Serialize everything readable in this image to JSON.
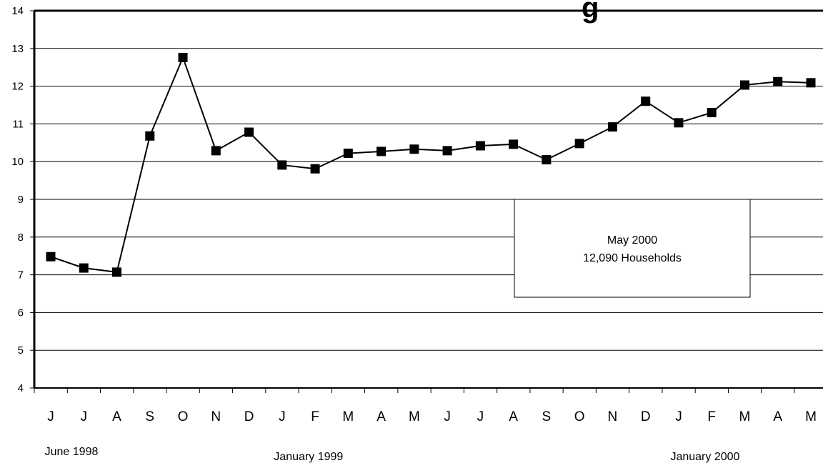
{
  "chart_data": {
    "type": "line",
    "title_fragment": "g",
    "categories": [
      "J",
      "J",
      "A",
      "S",
      "O",
      "N",
      "D",
      "J",
      "F",
      "M",
      "A",
      "M",
      "J",
      "J",
      "A",
      "S",
      "O",
      "N",
      "D",
      "J",
      "F",
      "M",
      "A",
      "M"
    ],
    "values": [
      7.48,
      7.18,
      7.07,
      10.68,
      12.76,
      10.29,
      10.78,
      9.91,
      9.81,
      10.22,
      10.27,
      10.33,
      10.29,
      10.42,
      10.46,
      10.05,
      10.48,
      10.92,
      11.6,
      11.03,
      11.3,
      12.03,
      12.12,
      12.09
    ],
    "ylim": [
      4,
      14
    ],
    "yticks": [
      4,
      5,
      6,
      7,
      8,
      9,
      10,
      11,
      12,
      13,
      14
    ],
    "grid": true,
    "marker": "square",
    "line_color": "#000000",
    "period_labels": [
      {
        "text": "June 1998",
        "category_index": 0
      },
      {
        "text": "January 1999",
        "category_index": 7
      },
      {
        "text": "January  2000",
        "category_index": 19
      }
    ],
    "annotation": {
      "line1": "May 2000",
      "line2": "12,090 Households"
    }
  }
}
